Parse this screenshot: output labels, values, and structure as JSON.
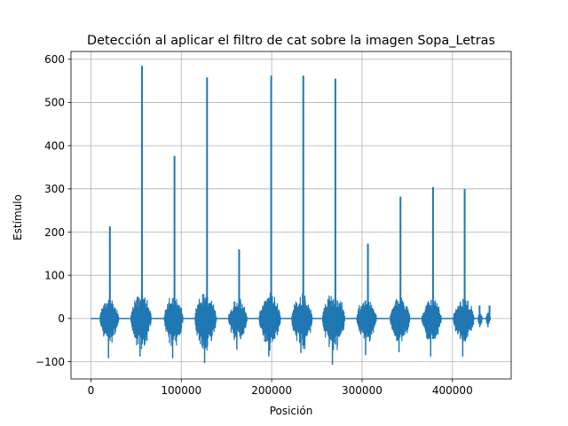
{
  "chart_data": {
    "type": "line",
    "title": "Detección al aplicar el filtro de cat sobre la imagen Sopa_Letras",
    "xlabel": "Posición",
    "ylabel": "Estímulo",
    "xlim": [
      -22000,
      465000
    ],
    "ylim": [
      -140,
      618
    ],
    "grid": true,
    "x_ticks": [
      0,
      100000,
      200000,
      300000,
      400000
    ],
    "x_tick_labels": [
      "0",
      "100000",
      "200000",
      "300000",
      "400000"
    ],
    "y_ticks": [
      -100,
      0,
      100,
      200,
      300,
      400,
      500,
      600
    ],
    "y_tick_labels": [
      "−100",
      "0",
      "100",
      "200",
      "300",
      "400",
      "500",
      "600"
    ],
    "color": "#1f77b4",
    "series": [
      {
        "baseline": 0,
        "x_range": [
          0,
          442000
        ],
        "bursts": [
          {
            "start": 10000,
            "end": 31000,
            "peak_x": 21000,
            "peak": 213,
            "min": -92,
            "typical_amplitude": 55
          },
          {
            "start": 44000,
            "end": 67000,
            "peak_x": 56500,
            "peak": 585,
            "min": -88,
            "typical_amplitude": 65
          },
          {
            "start": 81000,
            "end": 102000,
            "peak_x": 92500,
            "peak": 376,
            "min": -92,
            "typical_amplitude": 60
          },
          {
            "start": 115000,
            "end": 139000,
            "peak_x": 128500,
            "peak": 558,
            "min": -103,
            "typical_amplitude": 70
          },
          {
            "start": 152000,
            "end": 173000,
            "peak_x": 164000,
            "peak": 160,
            "min": -72,
            "typical_amplitude": 50
          },
          {
            "start": 186000,
            "end": 210000,
            "peak_x": 199500,
            "peak": 562,
            "min": -88,
            "typical_amplitude": 65
          },
          {
            "start": 222000,
            "end": 245000,
            "peak_x": 235000,
            "peak": 562,
            "min": -80,
            "typical_amplitude": 65
          },
          {
            "start": 256000,
            "end": 281000,
            "peak_x": 270500,
            "peak": 555,
            "min": -107,
            "typical_amplitude": 70
          },
          {
            "start": 294000,
            "end": 316000,
            "peak_x": 306500,
            "peak": 173,
            "min": -85,
            "typical_amplitude": 55
          },
          {
            "start": 331000,
            "end": 353000,
            "peak_x": 342500,
            "peak": 282,
            "min": -78,
            "typical_amplitude": 55
          },
          {
            "start": 366000,
            "end": 388000,
            "peak_x": 378500,
            "peak": 304,
            "min": -88,
            "typical_amplitude": 55
          },
          {
            "start": 401000,
            "end": 424000,
            "peak_x": 413500,
            "peak": 300,
            "min": -88,
            "typical_amplitude": 55
          },
          {
            "start": 428000,
            "end": 433000,
            "peak_x": 430000,
            "peak": 30,
            "min": -20,
            "typical_amplitude": 15
          },
          {
            "start": 437000,
            "end": 442000,
            "peak_x": 441000,
            "peak": 30,
            "min": -20,
            "typical_amplitude": 15
          }
        ]
      }
    ]
  }
}
